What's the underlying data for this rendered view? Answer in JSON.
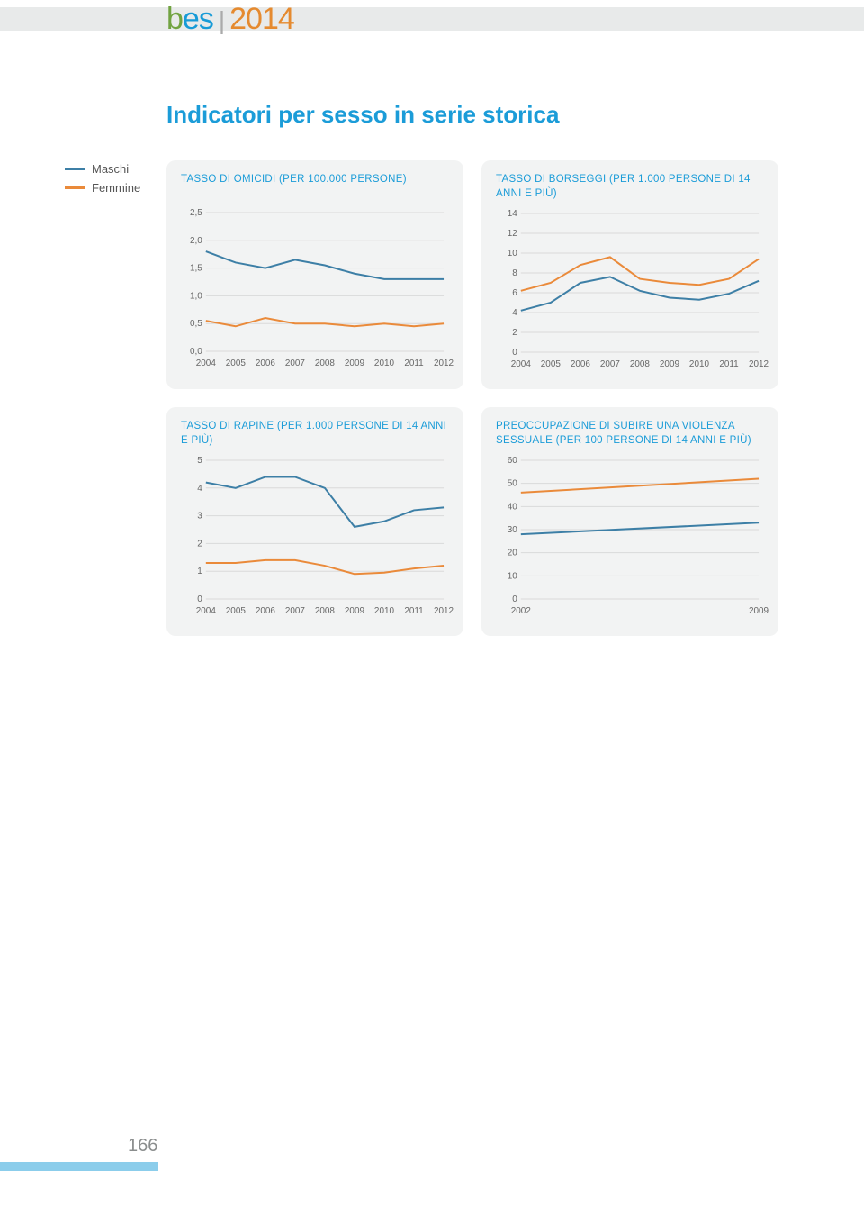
{
  "header": {
    "logo_text": "bes | 2014"
  },
  "title": "Indicatori per sesso in serie storica",
  "legend": {
    "items": [
      {
        "label": "Maschi",
        "color": "#3d7fa6"
      },
      {
        "label": "Femmine",
        "color": "#ea8a3a"
      }
    ]
  },
  "colors": {
    "card_bg": "#f2f3f3",
    "grid": "#d9dada",
    "title": "#1b9cd8",
    "male": "#3d7fa6",
    "female": "#ea8a3a"
  },
  "page_number": "166",
  "charts": [
    {
      "id": "chart-omicidi",
      "title": "TASSO DI OMICIDI (PER 100.000 PERSONE)",
      "type": "line",
      "x_labels": [
        "2004",
        "2005",
        "2006",
        "2007",
        "2008",
        "2009",
        "2010",
        "2011",
        "2012"
      ],
      "y_ticks": [
        0.0,
        0.5,
        1.0,
        1.5,
        2.0,
        2.5
      ],
      "y_tick_labels": [
        "0,0",
        "0,5",
        "1,0",
        "1,5",
        "2,0",
        "2,5"
      ],
      "ylim": [
        0.0,
        2.5
      ],
      "series": [
        {
          "name": "Maschi",
          "color": "#3d7fa6",
          "values": [
            1.8,
            1.6,
            1.5,
            1.65,
            1.55,
            1.4,
            1.3,
            1.3,
            1.3
          ]
        },
        {
          "name": "Femmine",
          "color": "#ea8a3a",
          "values": [
            0.55,
            0.45,
            0.6,
            0.5,
            0.5,
            0.45,
            0.5,
            0.45,
            0.5
          ]
        }
      ]
    },
    {
      "id": "chart-borseggi",
      "title": "TASSO DI BORSEGGI (PER 1.000 PERSONE DI 14 ANNI E PIÙ)",
      "type": "line",
      "x_labels": [
        "2004",
        "2005",
        "2006",
        "2007",
        "2008",
        "2009",
        "2010",
        "2011",
        "2012"
      ],
      "y_ticks": [
        0,
        2,
        4,
        6,
        8,
        10,
        12,
        14
      ],
      "y_tick_labels": [
        "0",
        "2",
        "4",
        "6",
        "8",
        "10",
        "12",
        "14"
      ],
      "ylim": [
        0,
        14
      ],
      "series": [
        {
          "name": "Maschi",
          "color": "#3d7fa6",
          "values": [
            4.2,
            5.0,
            7.0,
            7.6,
            6.2,
            5.5,
            5.3,
            5.9,
            7.2
          ]
        },
        {
          "name": "Femmine",
          "color": "#ea8a3a",
          "values": [
            6.2,
            7.0,
            8.8,
            9.6,
            7.4,
            7.0,
            6.8,
            7.4,
            9.4
          ]
        }
      ]
    },
    {
      "id": "chart-rapine",
      "title": "TASSO DI RAPINE (PER 1.000 PERSONE DI 14 ANNI E PIÙ)",
      "type": "line",
      "x_labels": [
        "2004",
        "2005",
        "2006",
        "2007",
        "2008",
        "2009",
        "2010",
        "2011",
        "2012"
      ],
      "y_ticks": [
        0,
        1,
        2,
        3,
        4,
        5
      ],
      "y_tick_labels": [
        "0",
        "1",
        "2",
        "3",
        "4",
        "5"
      ],
      "ylim": [
        0,
        5
      ],
      "series": [
        {
          "name": "Maschi",
          "color": "#3d7fa6",
          "values": [
            4.2,
            4.0,
            4.4,
            4.4,
            4.0,
            2.6,
            2.8,
            3.2,
            3.3
          ]
        },
        {
          "name": "Femmine",
          "color": "#ea8a3a",
          "values": [
            1.3,
            1.3,
            1.4,
            1.4,
            1.2,
            0.9,
            0.95,
            1.1,
            1.2
          ]
        }
      ]
    },
    {
      "id": "chart-violenza",
      "title": "PREOCCUPAZIONE DI SUBIRE UNA VIOLENZA SESSUALE (PER 100 PERSONE DI 14 ANNI E PIÙ)",
      "type": "line",
      "x_labels": [
        "2002",
        "2009"
      ],
      "y_ticks": [
        0,
        10,
        20,
        30,
        40,
        50,
        60
      ],
      "y_tick_labels": [
        "0",
        "10",
        "20",
        "30",
        "40",
        "50",
        "60"
      ],
      "ylim": [
        0,
        60
      ],
      "series": [
        {
          "name": "Maschi",
          "color": "#3d7fa6",
          "values": [
            28,
            33
          ]
        },
        {
          "name": "Femmine",
          "color": "#ea8a3a",
          "values": [
            46,
            52
          ]
        }
      ]
    }
  ]
}
